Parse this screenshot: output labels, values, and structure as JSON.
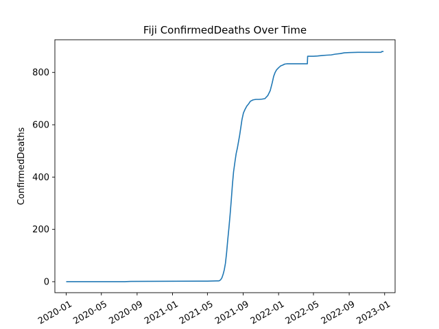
{
  "chart_data": {
    "type": "line",
    "title": "Fiji  ConfirmedDeaths Over Time",
    "xlabel": "",
    "ylabel": "ConfirmedDeaths",
    "xlim": [
      "2019-11-23",
      "2023-02-06"
    ],
    "ylim": [
      -42,
      925
    ],
    "grid": false,
    "legend": "none",
    "line_color": "#1f77b4",
    "x_ticks": [
      "2020-01",
      "2020-05",
      "2020-09",
      "2021-01",
      "2021-05",
      "2021-09",
      "2022-01",
      "2022-05",
      "2022-09",
      "2023-01"
    ],
    "y_ticks": [
      0,
      200,
      400,
      600,
      800
    ],
    "series": [
      {
        "x": [
          "2020-01-01",
          "2020-07-20",
          "2020-08-10",
          "2021-04-01",
          "2021-05-01",
          "2021-06-01",
          "2021-06-08",
          "2021-06-12",
          "2021-06-16",
          "2021-06-20",
          "2021-06-24",
          "2021-06-28",
          "2021-07-02",
          "2021-07-06",
          "2021-07-10",
          "2021-07-14",
          "2021-07-18",
          "2021-07-22",
          "2021-07-26",
          "2021-07-30",
          "2021-08-04",
          "2021-08-08",
          "2021-08-12",
          "2021-08-16",
          "2021-08-20",
          "2021-08-24",
          "2021-08-28",
          "2021-09-02",
          "2021-09-08",
          "2021-09-14",
          "2021-09-20",
          "2021-09-26",
          "2021-10-05",
          "2021-10-15",
          "2021-10-25",
          "2021-11-05",
          "2021-11-15",
          "2021-11-25",
          "2021-12-03",
          "2021-12-10",
          "2021-12-15",
          "2021-12-20",
          "2021-12-25",
          "2022-01-01",
          "2022-01-08",
          "2022-01-15",
          "2022-01-22",
          "2022-01-29",
          "2022-02-05",
          "2022-02-15",
          "2022-03-01",
          "2022-03-20",
          "2022-04-10",
          "2022-04-11",
          "2022-05-01",
          "2022-05-15",
          "2022-06-01",
          "2022-06-15",
          "2022-07-01",
          "2022-07-15",
          "2022-08-01",
          "2022-08-15",
          "2022-09-01",
          "2022-10-01",
          "2022-11-01",
          "2022-12-01",
          "2022-12-20",
          "2022-12-22",
          "2022-12-28"
        ],
        "values": [
          0,
          0,
          1,
          2,
          2,
          3,
          3,
          4,
          8,
          15,
          28,
          45,
          70,
          110,
          160,
          205,
          255,
          310,
          370,
          420,
          460,
          490,
          510,
          535,
          560,
          590,
          620,
          645,
          660,
          672,
          680,
          690,
          695,
          697,
          697,
          698,
          700,
          712,
          730,
          760,
          785,
          800,
          810,
          818,
          825,
          828,
          832,
          833,
          833,
          833,
          833,
          833,
          833,
          862,
          862,
          863,
          865,
          866,
          867,
          870,
          872,
          875,
          876,
          877,
          877,
          877,
          877,
          880,
          880
        ]
      }
    ]
  }
}
